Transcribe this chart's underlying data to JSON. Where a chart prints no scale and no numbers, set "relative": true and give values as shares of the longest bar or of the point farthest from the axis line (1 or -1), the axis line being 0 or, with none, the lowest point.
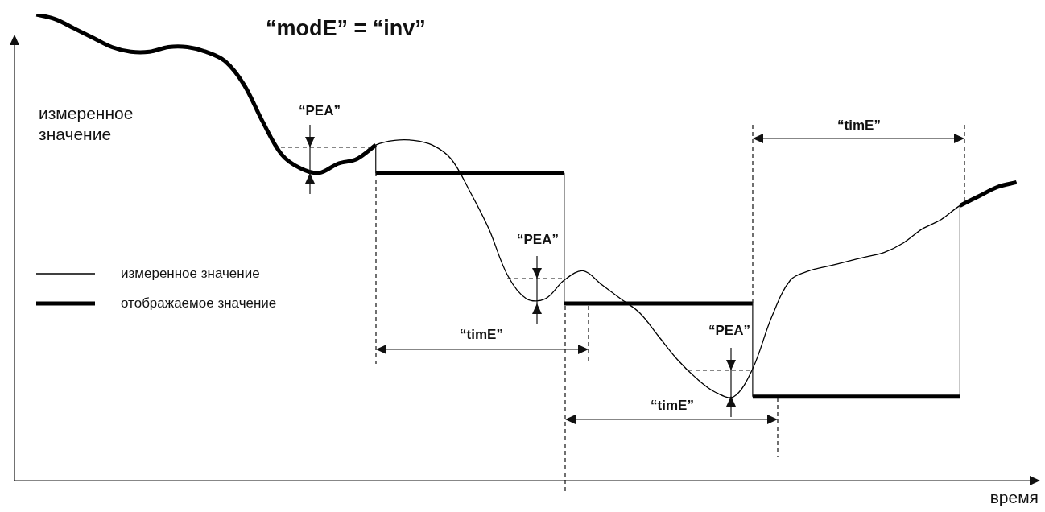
{
  "chart_data": {
    "type": "line",
    "relative": true,
    "title": "“modE” = “inv”",
    "ylabel": "измеренное значение",
    "xlabel": "время",
    "legend": "left",
    "marker": "none",
    "categories": [
      null,
      null,
      null,
      null,
      null,
      null,
      null,
      null,
      null,
      null,
      null,
      null,
      null,
      null,
      null,
      null,
      null,
      null,
      null,
      null,
      null,
      null,
      null,
      null,
      null,
      null,
      null,
      null,
      null,
      null,
      null,
      null,
      null,
      null,
      null,
      null,
      null,
      null,
      null,
      null,
      null,
      null,
      null,
      null,
      null,
      null,
      null,
      null,
      null,
      null,
      null,
      null,
      null,
      null,
      null
    ],
    "series": [
      {
        "name": "измеренное значение",
        "color": "#000000",
        "values": [
          null,
          1.0,
          0.99,
          0.97,
          0.95,
          0.93,
          0.92,
          0.92,
          0.93,
          0.93,
          0.92,
          0.9,
          0.85,
          0.77,
          0.7,
          0.67,
          0.66,
          0.68,
          0.69,
          0.72,
          0.73,
          0.73,
          0.72,
          0.69,
          0.62,
          0.54,
          0.44,
          0.39,
          0.39,
          0.43,
          0.45,
          0.42,
          0.39,
          0.36,
          0.31,
          0.26,
          0.22,
          0.19,
          0.18,
          0.24,
          0.35,
          0.43,
          0.45,
          0.46,
          0.47,
          0.48,
          0.49,
          0.51,
          0.54,
          0.56,
          0.59,
          0.61,
          0.63,
          0.64,
          null
        ]
      },
      {
        "name": "отображаемое значение",
        "color": "#000000",
        "values": [
          null,
          1.0,
          0.99,
          0.97,
          0.95,
          0.93,
          0.92,
          0.92,
          0.93,
          0.93,
          0.92,
          0.9,
          0.85,
          0.77,
          0.7,
          0.67,
          0.66,
          0.68,
          0.69,
          0.72,
          null,
          null,
          null,
          null,
          null,
          null,
          null,
          null,
          null,
          null,
          null,
          null,
          null,
          null,
          null,
          null,
          null,
          null,
          null,
          null,
          null,
          null,
          null,
          null,
          null,
          null,
          null,
          null,
          null,
          null,
          0.59,
          0.61,
          0.63,
          0.64,
          null
        ]
      },
      {
        "color": "#000000",
        "values": [
          null,
          null,
          null,
          null,
          null,
          null,
          null,
          null,
          null,
          null,
          null,
          null,
          null,
          null,
          null,
          null,
          null,
          null,
          null,
          0.66,
          0.66,
          0.66,
          0.66,
          0.66,
          0.66,
          0.66,
          0.66,
          0.66,
          0.66,
          0.66,
          null,
          null,
          null,
          null,
          null,
          null,
          null,
          null,
          null,
          null,
          null,
          null,
          null,
          null,
          null,
          null,
          null,
          null,
          null,
          null,
          null,
          null,
          null,
          null,
          null
        ]
      },
      {
        "color": "#000000",
        "values": [
          null,
          null,
          null,
          null,
          null,
          null,
          null,
          null,
          null,
          null,
          null,
          null,
          null,
          null,
          null,
          null,
          null,
          null,
          null,
          null,
          null,
          null,
          null,
          null,
          null,
          null,
          null,
          null,
          null,
          0.38,
          0.38,
          0.38,
          0.38,
          0.38,
          0.38,
          0.38,
          0.38,
          0.38,
          0.38,
          0.38,
          null,
          null,
          null,
          null,
          null,
          null,
          null,
          null,
          null,
          null,
          null,
          null,
          null,
          null,
          null
        ]
      },
      {
        "color": "#000000",
        "values": [
          null,
          null,
          null,
          null,
          null,
          null,
          null,
          null,
          null,
          null,
          null,
          null,
          null,
          null,
          null,
          null,
          null,
          null,
          null,
          null,
          null,
          null,
          null,
          null,
          null,
          null,
          null,
          null,
          null,
          null,
          null,
          null,
          null,
          null,
          null,
          null,
          null,
          null,
          null,
          0.18,
          0.18,
          0.18,
          0.18,
          0.18,
          0.18,
          0.18,
          0.18,
          0.18,
          0.18,
          0.18,
          0.18,
          null,
          null,
          null,
          null
        ]
      }
    ],
    "annotations": [
      "“PEA”",
      "“PEA”",
      "“PEA”",
      "“timE”",
      "“timE”",
      "“timE”"
    ]
  }
}
